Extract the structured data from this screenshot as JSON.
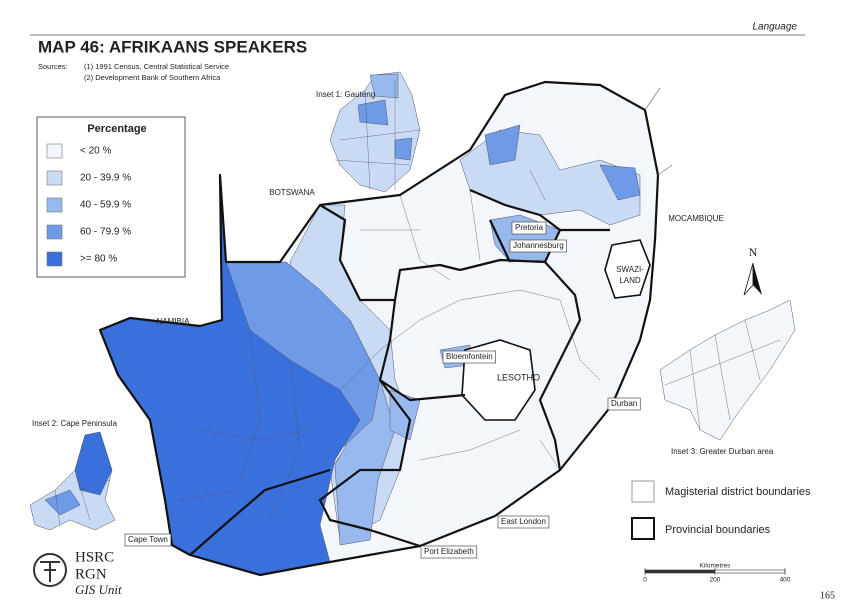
{
  "header": {
    "section": "Language",
    "title": "MAP 46: AFRIKAANS SPEAKERS",
    "sources_label": "Sources:",
    "sources": [
      "(1) 1991 Census, Central Statistical Service",
      "(2) Development Bank of Southern Africa"
    ]
  },
  "legend": {
    "title": "Percentage",
    "items": [
      {
        "label": "< 20  %",
        "color": "#f3f7fc"
      },
      {
        "label": "20 -  39.9 %",
        "color": "#c9daf5"
      },
      {
        "label": "40 -  59.9 %",
        "color": "#98b9ee"
      },
      {
        "label": "60 -  79.9 %",
        "color": "#6f9ae8"
      },
      {
        "label": ">= 80   %",
        "color": "#3a70dc"
      }
    ]
  },
  "insets": [
    "Inset 1: Gauteng",
    "Inset 2: Cape Peninsula",
    "Inset 3: Greater Durban area"
  ],
  "places": {
    "botswana": "BOTSWANA",
    "namibia": "NAMIBIA",
    "mozambique": "MOCAMBIQUE",
    "swazi": "SWAZI-",
    "land": "LAND",
    "lesotho": "LESOTHO",
    "cities": [
      "Pretoria",
      "Johannesburg",
      "Bloemfontein",
      "Durban",
      "East London",
      "Port Elizabeth",
      "Cape Town"
    ]
  },
  "north": "N",
  "boundary_legend": [
    "Magisterial district boundaries",
    "Provincial boundaries"
  ],
  "scale": {
    "title": "Kilometres",
    "ticks": [
      0,
      200,
      400
    ]
  },
  "logo": [
    "HSRC",
    "RGN",
    "GIS Unit"
  ],
  "page_number": "165"
}
